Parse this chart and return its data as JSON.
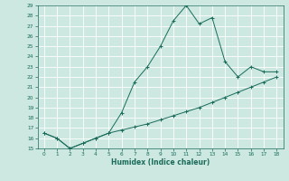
{
  "xlabel": "Humidex (Indice chaleur)",
  "background_color": "#cce8e0",
  "grid_color": "#aad4c8",
  "line_color": "#1a6b5a",
  "x_upper": [
    0,
    1,
    2,
    3,
    4,
    5,
    6,
    7,
    8,
    9,
    10,
    11,
    12,
    13,
    14,
    15,
    16,
    17,
    18
  ],
  "y_upper": [
    16.5,
    16.0,
    15.0,
    15.5,
    16.0,
    16.5,
    18.5,
    21.5,
    23.0,
    25.0,
    27.5,
    29.0,
    27.2,
    27.8,
    23.5,
    22.0,
    23.0,
    22.5,
    22.5
  ],
  "x_lower": [
    0,
    1,
    2,
    3,
    4,
    5,
    6,
    7,
    8,
    9,
    10,
    11,
    12,
    13,
    14,
    15,
    16,
    17,
    18
  ],
  "y_lower": [
    16.5,
    16.0,
    15.0,
    15.5,
    16.0,
    16.5,
    16.8,
    17.1,
    17.4,
    17.8,
    18.2,
    18.6,
    19.0,
    19.5,
    20.0,
    20.5,
    21.0,
    21.5,
    22.0
  ],
  "ylim": [
    15,
    29
  ],
  "xlim": [
    -0.5,
    18.5
  ],
  "yticks": [
    15,
    16,
    17,
    18,
    19,
    20,
    21,
    22,
    23,
    24,
    25,
    26,
    27,
    28,
    29
  ],
  "xticks": [
    0,
    1,
    2,
    3,
    4,
    5,
    6,
    7,
    8,
    9,
    10,
    11,
    12,
    13,
    14,
    15,
    16,
    17,
    18
  ]
}
